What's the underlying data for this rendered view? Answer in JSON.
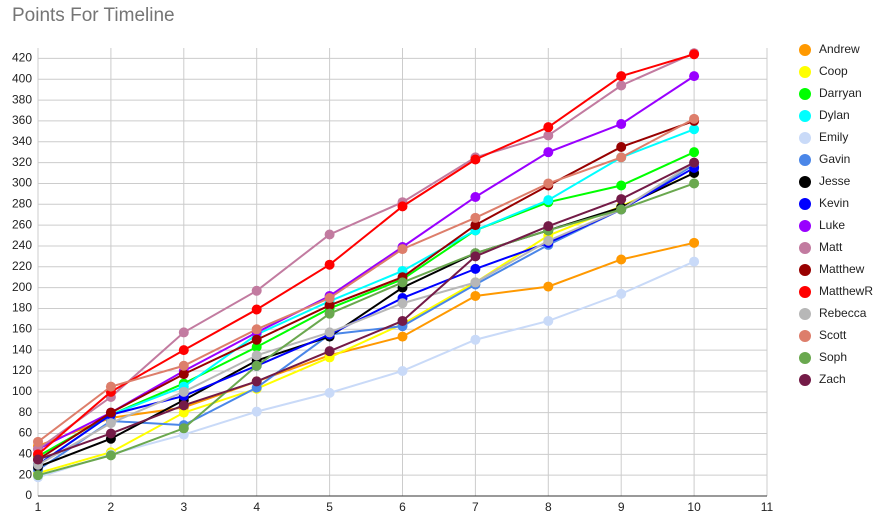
{
  "chart_data": {
    "type": "line",
    "title": "Points For Timeline",
    "x": [
      1,
      2,
      3,
      4,
      5,
      6,
      7,
      8,
      9,
      10
    ],
    "xlim": [
      1,
      11
    ],
    "xticks": [
      1,
      2,
      3,
      4,
      5,
      6,
      7,
      8,
      9,
      10,
      11
    ],
    "ylim": [
      0,
      430
    ],
    "yticks": [
      0,
      20,
      40,
      60,
      80,
      100,
      120,
      140,
      160,
      180,
      200,
      220,
      240,
      260,
      280,
      300,
      320,
      340,
      360,
      380,
      400,
      420
    ],
    "grid": true,
    "legend": "right",
    "series": [
      {
        "name": "Andrew",
        "color": "#ff9900",
        "values": [
          48,
          75,
          85,
          110,
          135,
          153,
          192,
          201,
          227,
          243
        ]
      },
      {
        "name": "Coop",
        "color": "#ffff00",
        "values": [
          22,
          42,
          80,
          103,
          133,
          165,
          205,
          250,
          278,
          310
        ]
      },
      {
        "name": "Darryan",
        "color": "#00ff00",
        "values": [
          38,
          78,
          108,
          143,
          180,
          208,
          255,
          282,
          298,
          330
        ]
      },
      {
        "name": "Dylan",
        "color": "#00ffff",
        "values": [
          30,
          78,
          105,
          155,
          187,
          216,
          255,
          284,
          325,
          352
        ]
      },
      {
        "name": "Emily",
        "color": "#c9daf8",
        "values": [
          18,
          40,
          59,
          81,
          99,
          120,
          150,
          168,
          194,
          225
        ]
      },
      {
        "name": "Gavin",
        "color": "#4a86e8",
        "values": [
          25,
          72,
          68,
          104,
          155,
          163,
          203,
          241,
          275,
          318
        ]
      },
      {
        "name": "Jesse",
        "color": "#000000",
        "values": [
          28,
          55,
          92,
          130,
          153,
          200,
          233,
          255,
          277,
          310
        ]
      },
      {
        "name": "Kevin",
        "color": "#0000ff",
        "values": [
          30,
          78,
          96,
          125,
          155,
          190,
          218,
          243,
          275,
          315
        ]
      },
      {
        "name": "Luke",
        "color": "#9900ff",
        "values": [
          45,
          80,
          120,
          157,
          192,
          239,
          287,
          330,
          357,
          403
        ]
      },
      {
        "name": "Matt",
        "color": "#c27ba0",
        "values": [
          45,
          95,
          157,
          197,
          251,
          282,
          325,
          346,
          394,
          425
        ]
      },
      {
        "name": "Matthew",
        "color": "#980000",
        "values": [
          35,
          80,
          117,
          150,
          183,
          210,
          260,
          298,
          335,
          360
        ]
      },
      {
        "name": "MatthewR",
        "color": "#ff0000",
        "values": [
          40,
          100,
          140,
          179,
          222,
          278,
          323,
          354,
          403,
          424
        ]
      },
      {
        "name": "Rebecca",
        "color": "#b7b7b7",
        "values": [
          30,
          70,
          100,
          135,
          157,
          185,
          205,
          245,
          275,
          320
        ]
      },
      {
        "name": "Scott",
        "color": "#dd7e6b",
        "values": [
          52,
          105,
          125,
          160,
          190,
          237,
          267,
          300,
          325,
          362
        ]
      },
      {
        "name": "Soph",
        "color": "#6aa84f",
        "values": [
          20,
          39,
          65,
          125,
          175,
          205,
          233,
          255,
          275,
          300
        ]
      },
      {
        "name": "Zach",
        "color": "#741b47",
        "values": [
          35,
          60,
          87,
          110,
          139,
          168,
          230,
          259,
          285,
          320
        ]
      }
    ]
  }
}
